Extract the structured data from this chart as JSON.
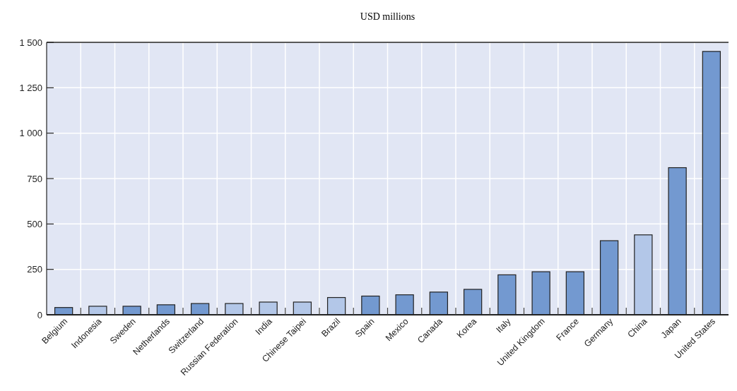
{
  "chart_data": {
    "type": "bar",
    "title": "USD millions",
    "categories": [
      "Belgium",
      "Indonesia",
      "Sweden",
      "Netherlands",
      "Switzerland",
      "Russian Federation",
      "India",
      "Chinese Taipei",
      "Brazil",
      "Spain",
      "Mexico",
      "Canada",
      "Korea",
      "Italy",
      "United Kingdom",
      "France",
      "Germany",
      "China",
      "Japan",
      "United States"
    ],
    "values": [
      40,
      47,
      47,
      55,
      62,
      62,
      70,
      70,
      95,
      103,
      110,
      125,
      140,
      220,
      237,
      237,
      408,
      440,
      810,
      1450
    ],
    "colors": [
      "#7399d0",
      "#b3c7e8",
      "#7399d0",
      "#7399d0",
      "#7399d0",
      "#b3c7e8",
      "#b3c7e8",
      "#b3c7e8",
      "#b3c7e8",
      "#7399d0",
      "#7399d0",
      "#7399d0",
      "#7399d0",
      "#7399d0",
      "#7399d0",
      "#7399d0",
      "#7399d0",
      "#b3c7e8",
      "#7399d0",
      "#7399d0"
    ],
    "ylim": [
      0,
      1500
    ],
    "yticks": [
      0,
      250,
      500,
      750,
      {
        "value": 1000,
        "label": "1 000"
      },
      {
        "value": 1250,
        "label": "1 250"
      },
      {
        "value": 1500,
        "label": "1 500"
      }
    ],
    "grid": true
  }
}
